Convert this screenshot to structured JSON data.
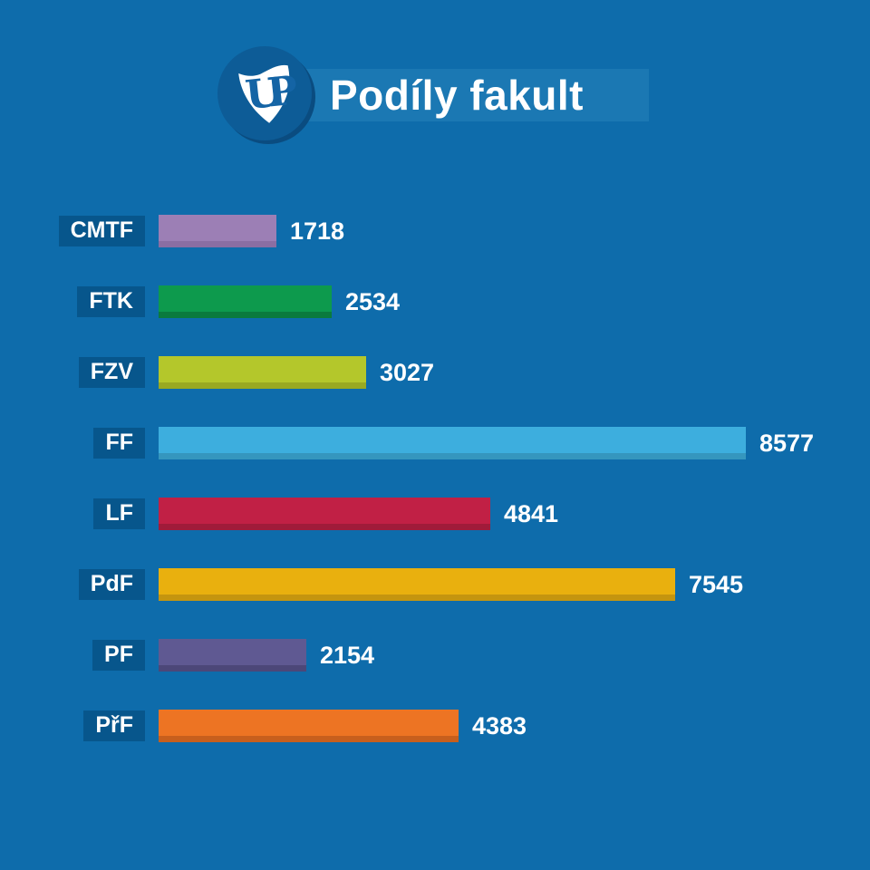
{
  "title": "Podíly fakult",
  "logo": {
    "icon": "university-shield-logo",
    "monogram": "UP"
  },
  "colors": {
    "background": "#0E6CAB",
    "title_band": "#1B78B3",
    "label_chip": "#07568C",
    "text": "#FFFFFF",
    "logo_circle": "#0D5C97",
    "logo_circle_shadow": "#0A4C80",
    "logo_shield": "#FFFFFF",
    "logo_monogram": "#1464A5"
  },
  "chart_data": {
    "type": "bar",
    "orientation": "horizontal",
    "title": "Podíly fakult",
    "categories": [
      "CMTF",
      "FTK",
      "FZV",
      "FF",
      "LF",
      "PdF",
      "PF",
      "PřF"
    ],
    "values": [
      1718,
      2534,
      3027,
      8577,
      4841,
      7545,
      2154,
      4383
    ],
    "bar_colors": [
      "#9C7FB5",
      "#0D9A4D",
      "#B4C72B",
      "#3DAEDE",
      "#C12045",
      "#E9B00E",
      "#5F5992",
      "#ED7423"
    ],
    "bar_shade_colors": [
      "#8A6EA3",
      "#0A7A3D",
      "#99A922",
      "#3596BE",
      "#A01B3A",
      "#C4950F",
      "#4C4778",
      "#C75F1D"
    ],
    "xlim": [
      0,
      8577
    ],
    "value_labels_shown": true,
    "grid": false,
    "legend": false
  }
}
